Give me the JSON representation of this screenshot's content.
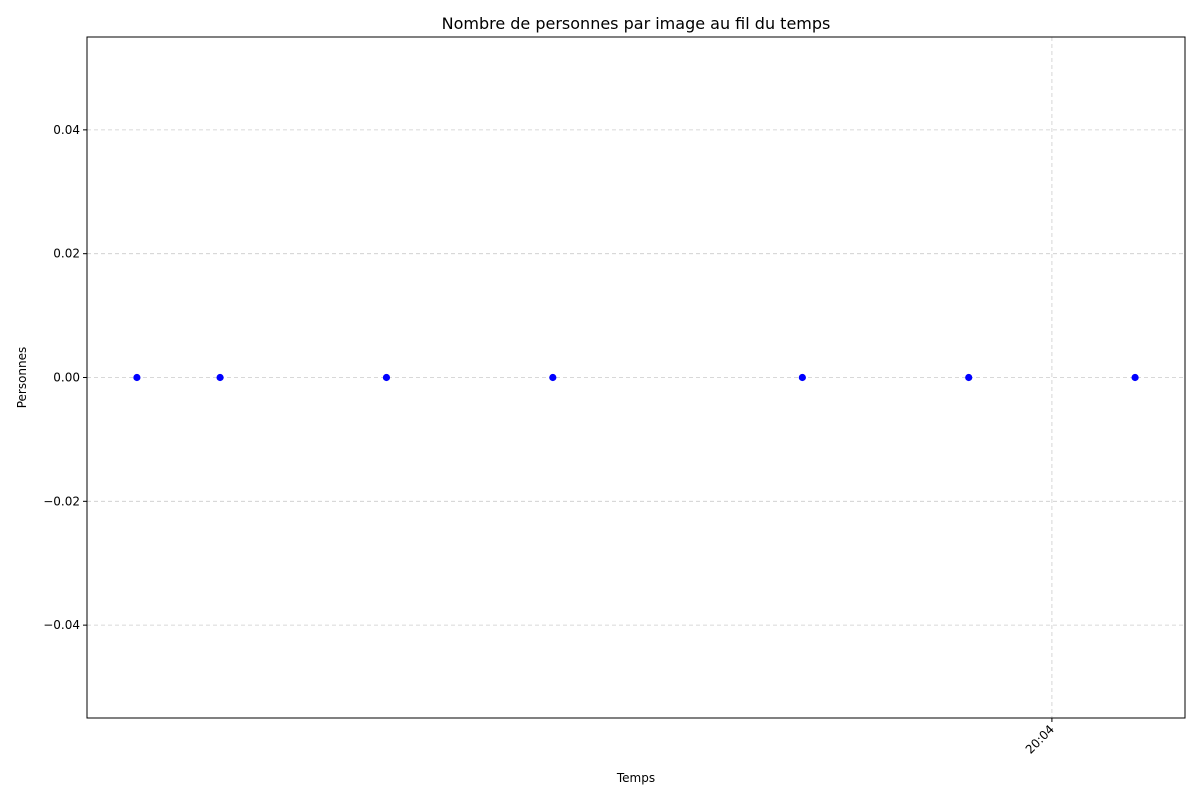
{
  "chart_data": {
    "type": "scatter",
    "title": "Nombre de personnes par image au fil du temps",
    "xlabel": "Temps",
    "ylabel": "Personnes",
    "x_axis_kind": "time",
    "x_unit": "minutes after 20:00",
    "xlim": [
      3.42,
      4.08
    ],
    "ylim": [
      -0.055,
      0.055
    ],
    "grid": true,
    "grid_style": "dashed",
    "point_color": "#0000ff",
    "x_ticks": [
      {
        "value": 4.0,
        "label": "20:04"
      }
    ],
    "y_ticks": [
      {
        "value": 0.04,
        "label": "0.04"
      },
      {
        "value": 0.02,
        "label": "0.02"
      },
      {
        "value": 0.0,
        "label": "0.00"
      },
      {
        "value": -0.02,
        "label": "−0.02"
      },
      {
        "value": -0.04,
        "label": "−0.04"
      }
    ],
    "series": [
      {
        "x": [
          3.45,
          3.5,
          3.6,
          3.7,
          3.85,
          3.95,
          4.05
        ],
        "y": [
          0,
          0,
          0,
          0,
          0,
          0,
          0
        ]
      }
    ]
  }
}
